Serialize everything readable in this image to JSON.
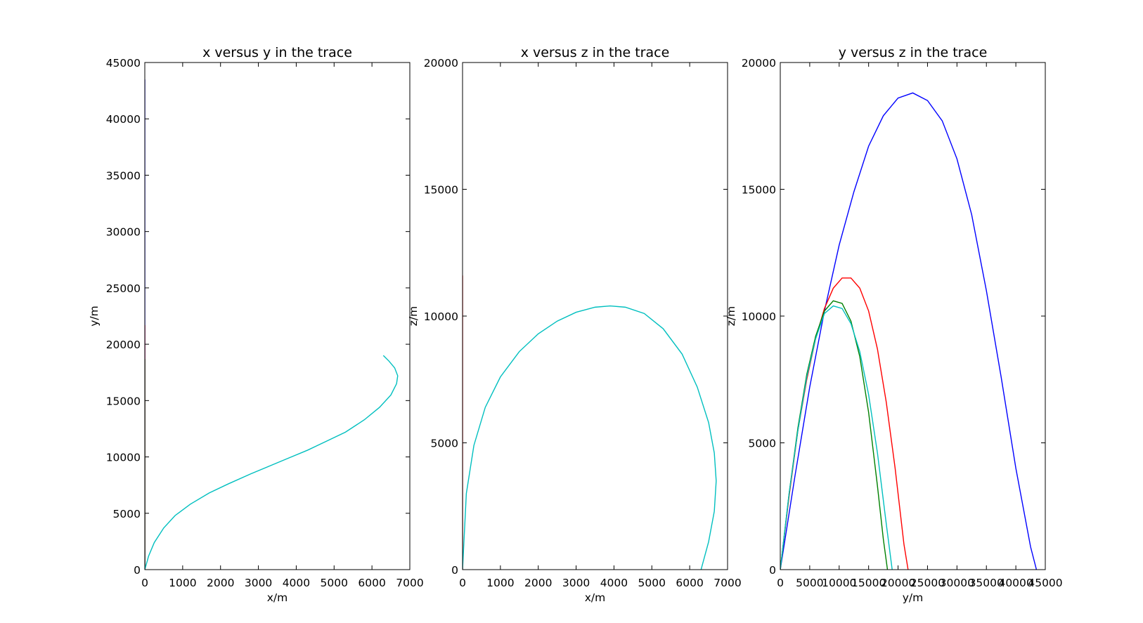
{
  "figure": {
    "background": "#ffffff"
  },
  "chart_data": [
    {
      "type": "line",
      "title": "x versus y in the trace",
      "xlabel": "x/m",
      "ylabel": "y/m",
      "xlim": [
        0,
        7000
      ],
      "ylim": [
        0,
        45000
      ],
      "xticks": [
        0,
        1000,
        2000,
        3000,
        4000,
        5000,
        6000,
        7000
      ],
      "yticks": [
        0,
        5000,
        10000,
        15000,
        20000,
        25000,
        30000,
        35000,
        40000,
        45000
      ],
      "grid": false,
      "series": [
        {
          "color": "#0000ff",
          "x": [
            0,
            0
          ],
          "y": [
            0,
            43500
          ]
        },
        {
          "color": "#ff0000",
          "x": [
            0,
            0
          ],
          "y": [
            0,
            21700
          ]
        },
        {
          "color": "#008000",
          "x": [
            0,
            0
          ],
          "y": [
            0,
            18700
          ]
        },
        {
          "color": "#00bfbf",
          "x": [
            0,
            100,
            250,
            500,
            800,
            1200,
            1700,
            2200,
            2800,
            3300,
            3800,
            4300,
            4800,
            5300,
            5800,
            6200,
            6500,
            6650,
            6680,
            6600,
            6450,
            6300
          ],
          "y": [
            0,
            1200,
            2400,
            3700,
            4800,
            5800,
            6800,
            7600,
            8500,
            9200,
            9900,
            10600,
            11400,
            12200,
            13300,
            14400,
            15500,
            16500,
            17200,
            17900,
            18500,
            19000
          ]
        }
      ]
    },
    {
      "type": "line",
      "title": "x versus z in the trace",
      "xlabel": "x/m",
      "ylabel": "z/m",
      "xlim": [
        0,
        7000
      ],
      "ylim": [
        0,
        20000
      ],
      "xticks": [
        0,
        1000,
        2000,
        3000,
        4000,
        5000,
        6000,
        7000
      ],
      "yticks": [
        0,
        5000,
        10000,
        15000,
        20000
      ],
      "grid": false,
      "series": [
        {
          "color": "#ff0000",
          "x": [
            0,
            0
          ],
          "y": [
            0,
            11600
          ]
        },
        {
          "color": "#00bfbf",
          "x": [
            0,
            100,
            300,
            600,
            1000,
            1500,
            2000,
            2500,
            3000,
            3500,
            3900,
            4300,
            4800,
            5300,
            5800,
            6200,
            6500,
            6650,
            6700,
            6650,
            6500,
            6300
          ],
          "y": [
            0,
            3000,
            4900,
            6400,
            7600,
            8600,
            9300,
            9800,
            10150,
            10350,
            10400,
            10350,
            10100,
            9500,
            8500,
            7200,
            5800,
            4600,
            3500,
            2300,
            1100,
            0
          ]
        }
      ]
    },
    {
      "type": "line",
      "title": "y versus z in the trace",
      "xlabel": "y/m",
      "ylabel": "z/m",
      "xlim": [
        0,
        45000
      ],
      "ylim": [
        0,
        20000
      ],
      "xticks": [
        0,
        5000,
        10000,
        15000,
        20000,
        25000,
        30000,
        35000,
        40000,
        45000
      ],
      "yticks": [
        0,
        5000,
        10000,
        15000,
        20000
      ],
      "grid": false,
      "series": [
        {
          "color": "#0000ff",
          "x": [
            0,
            2500,
            5000,
            7500,
            10000,
            12500,
            15000,
            17500,
            20000,
            22500,
            25000,
            27500,
            30000,
            32500,
            35000,
            37500,
            40000,
            42500,
            43500
          ],
          "y": [
            0,
            3700,
            7200,
            10200,
            12800,
            14900,
            16700,
            17900,
            18600,
            18800,
            18500,
            17700,
            16200,
            14000,
            11000,
            7600,
            4000,
            900,
            0
          ]
        }
      ],
      "extra_series": [
        {
          "color": "#ff0000",
          "x": [
            0,
            1500,
            3000,
            4500,
            6000,
            7500,
            9000,
            10500,
            12000,
            13500,
            15000,
            16500,
            18000,
            19500,
            21000,
            21700
          ],
          "y": [
            0,
            2900,
            5500,
            7500,
            9100,
            10300,
            11100,
            11500,
            11500,
            11100,
            10200,
            8700,
            6600,
            4000,
            1000,
            0
          ]
        },
        {
          "color": "#008000",
          "x": [
            0,
            1500,
            3000,
            4500,
            6000,
            7500,
            9000,
            10500,
            12000,
            13500,
            15000,
            16500,
            17500,
            18200
          ],
          "y": [
            0,
            3000,
            5600,
            7700,
            9200,
            10200,
            10600,
            10500,
            9800,
            8400,
            6200,
            3300,
            1200,
            0
          ]
        },
        {
          "color": "#00bfbf",
          "x": [
            0,
            1500,
            3000,
            4500,
            6000,
            7500,
            9000,
            10500,
            12000,
            13500,
            15000,
            16500,
            18000,
            19000
          ],
          "y": [
            0,
            3000,
            5500,
            7600,
            9100,
            10100,
            10400,
            10300,
            9700,
            8600,
            6900,
            4600,
            1800,
            0
          ]
        }
      ]
    }
  ]
}
